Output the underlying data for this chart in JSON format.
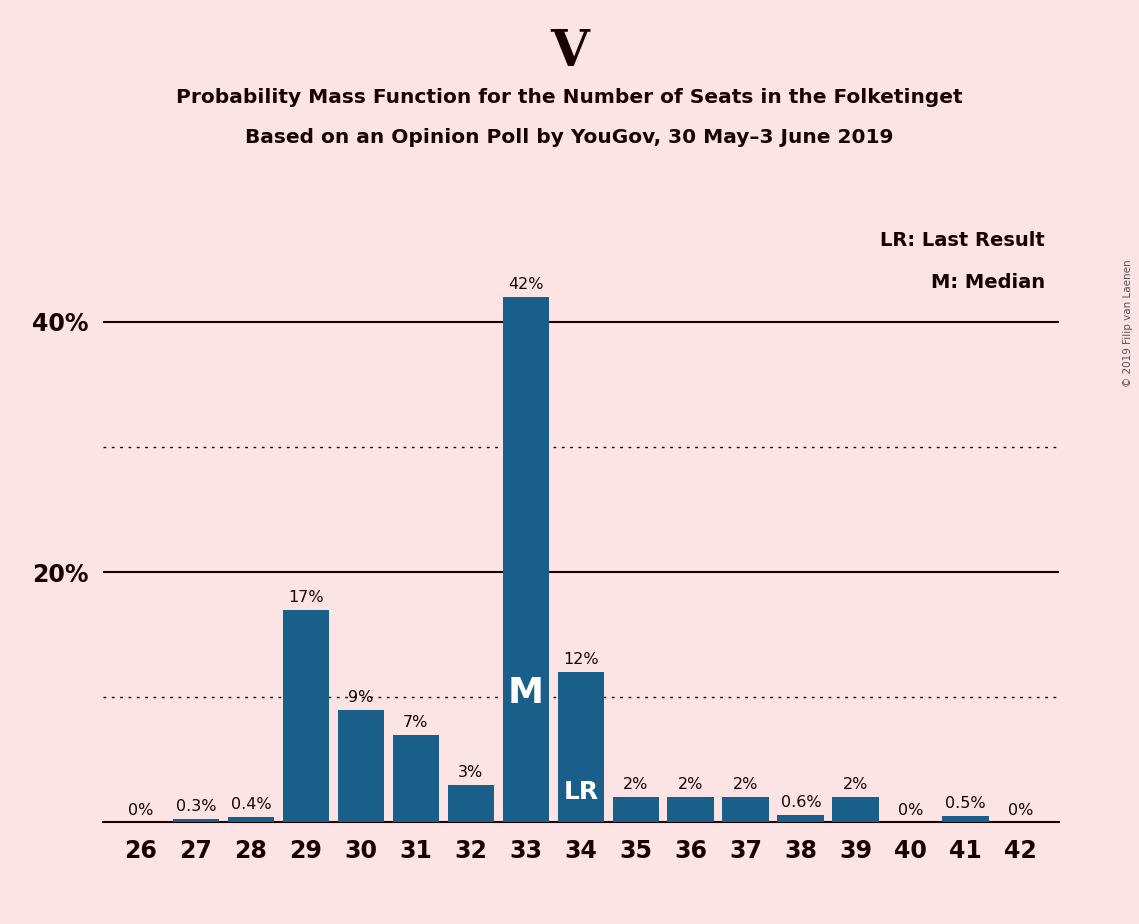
{
  "title_main": "V",
  "title_sub1": "Probability Mass Function for the Number of Seats in the Folketinget",
  "title_sub2": "Based on an Opinion Poll by YouGov, 30 May–3 June 2019",
  "categories": [
    26,
    27,
    28,
    29,
    30,
    31,
    32,
    33,
    34,
    35,
    36,
    37,
    38,
    39,
    40,
    41,
    42
  ],
  "values": [
    0.0,
    0.3,
    0.4,
    17.0,
    9.0,
    7.0,
    3.0,
    42.0,
    12.0,
    2.0,
    2.0,
    2.0,
    0.6,
    2.0,
    0.0,
    0.5,
    0.0
  ],
  "labels": [
    "0%",
    "0.3%",
    "0.4%",
    "17%",
    "9%",
    "7%",
    "3%",
    "42%",
    "12%",
    "2%",
    "2%",
    "2%",
    "0.6%",
    "2%",
    "0%",
    "0.5%",
    "0%"
  ],
  "bar_color": "#1a5e8a",
  "background_color": "#fce4e4",
  "text_color": "#1a0000",
  "median_seat": 33,
  "last_result_seat": 34,
  "legend_lr": "LR: Last Result",
  "legend_m": "M: Median",
  "copyright": "© 2019 Filip van Laenen",
  "dotted_lines": [
    10,
    30
  ],
  "solid_lines": [
    20,
    40
  ],
  "ylim": [
    0,
    48
  ],
  "ylabel_20": "20%",
  "ylabel_40": "40%"
}
